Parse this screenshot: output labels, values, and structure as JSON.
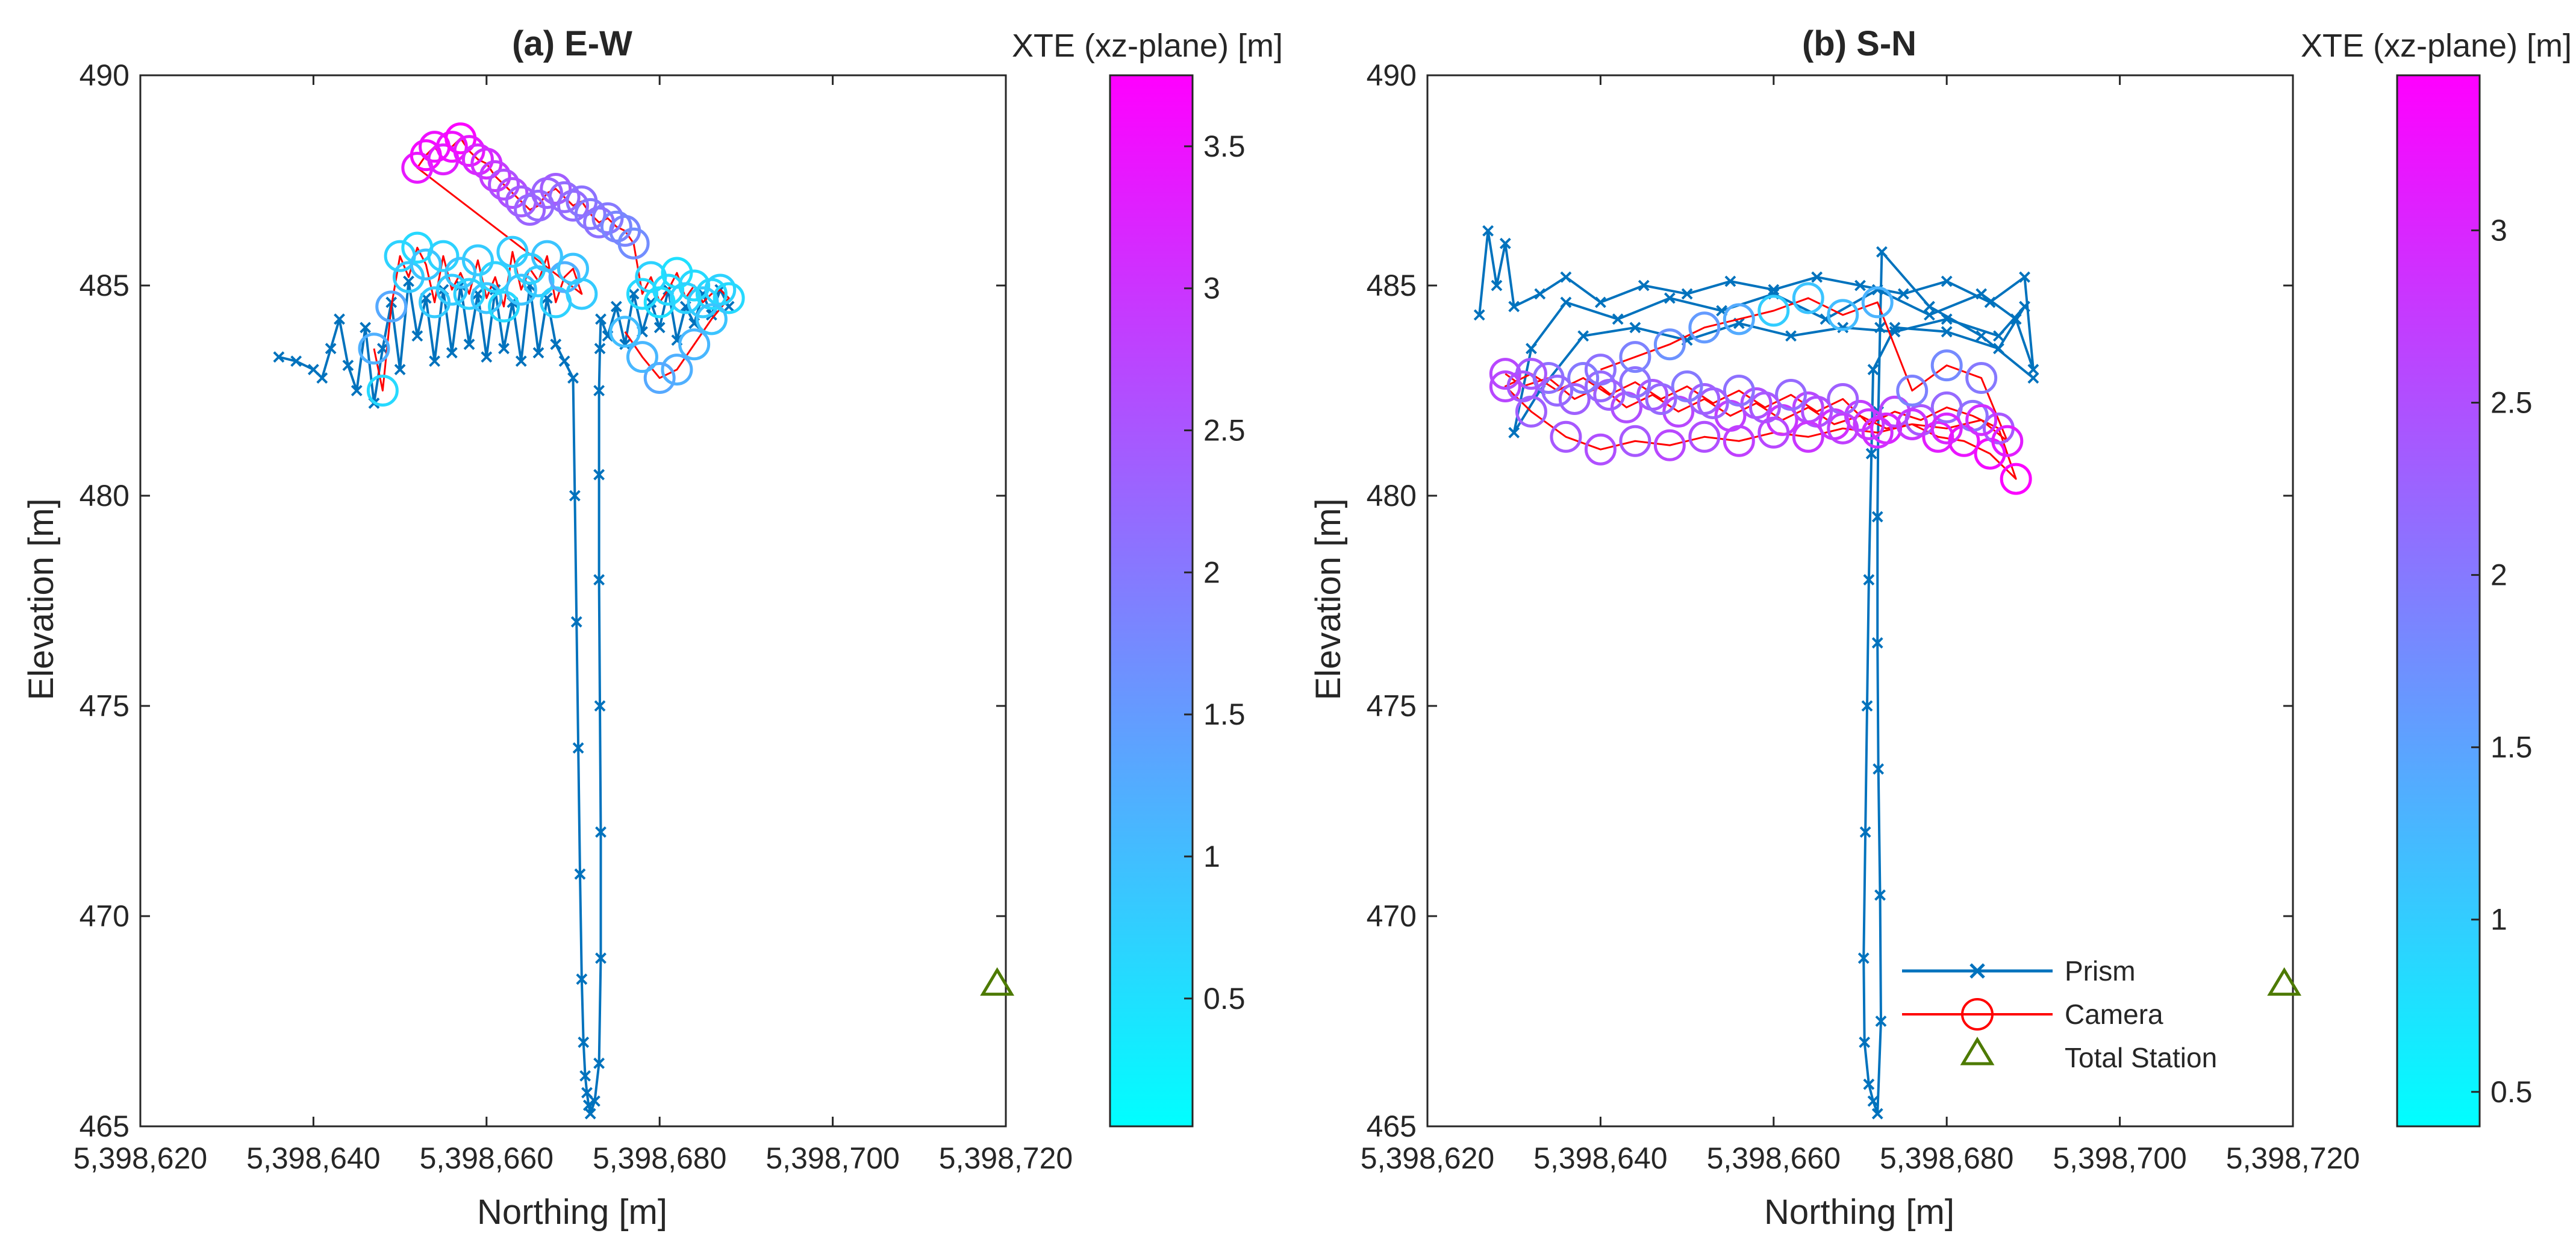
{
  "figure": {
    "colormap_low": "#00ffff",
    "colormap_high": "#ff00ff",
    "prism_color": "#0072bd",
    "camera_color": "#ff0000",
    "station_color": "#4d7a00"
  },
  "chart_data": [
    {
      "id": "a",
      "type": "scatter",
      "title": "(a) E-W",
      "xlabel": "Northing [m]",
      "ylabel": "Elevation [m]",
      "xlim": [
        5398620,
        5398720
      ],
      "ylim": [
        465,
        490
      ],
      "xticks": [
        5398620,
        5398640,
        5398660,
        5398680,
        5398700,
        5398720
      ],
      "xtick_labels": [
        "5,398,620",
        "5,398,640",
        "5,398,660",
        "5,398,680",
        "5,398,700",
        "5,398,720"
      ],
      "yticks": [
        465,
        470,
        475,
        480,
        485,
        490
      ],
      "ytick_labels": [
        "465",
        "470",
        "475",
        "480",
        "485",
        "490"
      ],
      "colorbar": {
        "label": "XTE (xz-plane) [m]",
        "range": [
          0.05,
          3.75
        ],
        "ticks": [
          0.5,
          1,
          1.5,
          2,
          2.5,
          3,
          3.5
        ],
        "tick_labels": [
          "0.5",
          "1",
          "1.5",
          "2",
          "2.5",
          "3",
          "3.5"
        ]
      },
      "series": [
        {
          "name": "Prism",
          "marker": "x",
          "x": [
            5398636,
            5398638,
            5398640,
            5398641,
            5398642,
            5398643,
            5398644,
            5398645,
            5398646,
            5398647,
            5398648,
            5398649,
            5398650,
            5398651,
            5398652,
            5398653,
            5398654,
            5398655,
            5398656,
            5398657,
            5398658,
            5398659,
            5398660,
            5398661,
            5398662,
            5398663,
            5398664,
            5398665,
            5398666,
            5398667,
            5398668,
            5398669,
            5398670,
            5398670.2,
            5398670.4,
            5398670.6,
            5398670.8,
            5398671,
            5398671.2,
            5398671.4,
            5398671.6,
            5398671.8,
            5398672,
            5398672.5,
            5398673,
            5398673.2,
            5398673.2,
            5398673.1,
            5398673.0,
            5398673.0,
            5398673.0,
            5398673.1,
            5398673.2,
            5398674,
            5398675,
            5398676,
            5398677,
            5398678,
            5398679,
            5398680,
            5398681,
            5398682,
            5398683,
            5398684,
            5398685,
            5398686,
            5398687,
            5398688
          ],
          "y": [
            483.3,
            483.2,
            483.0,
            482.8,
            483.5,
            484.2,
            483.1,
            482.5,
            484.0,
            482.2,
            483.5,
            484.6,
            483.0,
            485.1,
            483.8,
            484.7,
            483.2,
            484.9,
            483.4,
            485.0,
            483.6,
            484.8,
            483.3,
            484.9,
            483.5,
            484.6,
            483.2,
            485.0,
            483.4,
            484.7,
            483.6,
            483.2,
            482.8,
            480.0,
            477.0,
            474.0,
            471.0,
            468.5,
            467.0,
            466.2,
            465.8,
            465.5,
            465.3,
            465.6,
            466.5,
            469.0,
            472.0,
            475.0,
            478.0,
            480.5,
            482.5,
            483.5,
            484.2,
            483.8,
            484.5,
            483.6,
            484.8,
            483.9,
            484.6,
            484.0,
            484.9,
            483.7,
            484.5,
            484.1,
            484.8,
            484.3,
            484.9,
            484.5
          ],
          "color": "#0072bd"
        },
        {
          "name": "Camera",
          "marker": "o",
          "x": [
            5398647,
            5398648,
            5398649,
            5398650,
            5398651,
            5398652,
            5398653,
            5398654,
            5398655,
            5398656,
            5398657,
            5398658,
            5398659,
            5398660,
            5398661,
            5398662,
            5398663,
            5398664,
            5398665,
            5398666,
            5398667,
            5398668,
            5398669,
            5398670,
            5398671,
            5398652,
            5398653,
            5398654,
            5398655,
            5398656,
            5398657,
            5398658,
            5398659,
            5398660,
            5398661,
            5398662,
            5398663,
            5398664,
            5398665,
            5398666,
            5398667,
            5398668,
            5398669,
            5398670,
            5398671,
            5398672,
            5398673,
            5398674,
            5398675,
            5398676,
            5398677,
            5398678,
            5398679,
            5398680,
            5398681,
            5398682,
            5398683,
            5398684,
            5398685,
            5398686,
            5398687,
            5398688,
            5398686,
            5398684,
            5398682,
            5398680,
            5398678,
            5398676
          ],
          "y": [
            483.5,
            482.5,
            484.5,
            485.7,
            485.2,
            485.9,
            485.5,
            484.6,
            485.7,
            484.9,
            485.3,
            484.8,
            485.6,
            484.7,
            485.2,
            484.5,
            485.8,
            484.9,
            485.4,
            485.1,
            485.7,
            484.6,
            485.2,
            485.4,
            484.8,
            487.8,
            488.1,
            488.3,
            488.0,
            488.3,
            488.5,
            488.2,
            488.0,
            487.9,
            487.6,
            487.4,
            487.2,
            487.0,
            486.8,
            486.9,
            487.2,
            487.3,
            487.1,
            486.9,
            487.0,
            486.7,
            486.5,
            486.6,
            486.4,
            486.3,
            486.0,
            484.8,
            485.2,
            484.6,
            484.9,
            485.3,
            484.7,
            485.0,
            484.6,
            484.8,
            484.9,
            484.7,
            484.2,
            483.6,
            483.0,
            482.8,
            483.3,
            483.9
          ],
          "xte": [
            1.2,
            0.6,
            1.3,
            0.7,
            0.8,
            0.6,
            0.9,
            0.8,
            0.7,
            0.8,
            0.9,
            0.7,
            0.8,
            0.9,
            0.7,
            0.6,
            0.8,
            0.9,
            0.7,
            0.8,
            0.9,
            0.7,
            1.2,
            0.9,
            0.8,
            3.4,
            3.6,
            3.5,
            3.3,
            3.5,
            3.7,
            3.4,
            3.2,
            3.1,
            2.9,
            2.6,
            2.6,
            2.4,
            2.3,
            2.2,
            2.3,
            2.4,
            2.2,
            2.2,
            2.1,
            2.0,
            2.1,
            2.0,
            1.8,
            1.8,
            1.7,
            0.6,
            0.7,
            0.5,
            0.6,
            0.5,
            0.7,
            0.6,
            0.8,
            0.6,
            0.7,
            0.6,
            0.9,
            1.1,
            1.2,
            1.3,
            1.1,
            1.0
          ],
          "color": "#ff0000"
        },
        {
          "name": "Total Station",
          "marker": "triangle",
          "x": [
            5398719
          ],
          "y": [
            468.4
          ],
          "color": "#4d7a00"
        }
      ]
    },
    {
      "id": "b",
      "type": "scatter",
      "title": "(b) S-N",
      "xlabel": "Northing [m]",
      "ylabel": "Elevation [m]",
      "xlim": [
        5398620,
        5398720
      ],
      "ylim": [
        465,
        490
      ],
      "xticks": [
        5398620,
        5398640,
        5398660,
        5398680,
        5398700,
        5398720
      ],
      "xtick_labels": [
        "5,398,620",
        "5,398,640",
        "5,398,660",
        "5,398,680",
        "5,398,700",
        "5,398,720"
      ],
      "yticks": [
        465,
        470,
        475,
        480,
        485,
        490
      ],
      "ytick_labels": [
        "465",
        "470",
        "475",
        "480",
        "485",
        "490"
      ],
      "colorbar": {
        "label": "XTE (xz-plane) [m]",
        "range": [
          0.4,
          3.45
        ],
        "ticks": [
          0.5,
          1,
          1.5,
          2,
          2.5,
          3
        ],
        "tick_labels": [
          "0.5",
          "1",
          "1.5",
          "2",
          "2.5",
          "3"
        ]
      },
      "legend": {
        "position": "bottom-right",
        "entries": [
          "Prism",
          "Camera",
          "Total Station"
        ]
      },
      "series": [
        {
          "name": "Prism",
          "marker": "x",
          "x": [
            5398626,
            5398627,
            5398628,
            5398629,
            5398630,
            5398633,
            5398636,
            5398640,
            5398645,
            5398650,
            5398655,
            5398660,
            5398665,
            5398670,
            5398675,
            5398680,
            5398685,
            5398689,
            5398690,
            5398688,
            5398684,
            5398678,
            5398672,
            5398666,
            5398660,
            5398654,
            5398648,
            5398642,
            5398636,
            5398632,
            5398630,
            5398633,
            5398638,
            5398644,
            5398650,
            5398656,
            5398662,
            5398668,
            5398674,
            5398680,
            5398686,
            5398689,
            5398686,
            5398680,
            5398674,
            5398671.5,
            5398671.3,
            5398671.0,
            5398670.8,
            5398670.6,
            5398670.4,
            5398670.5,
            5398671.0,
            5398671.5,
            5398672.0,
            5398672.4,
            5398672.3,
            5398672.1,
            5398672.0,
            5398672.0,
            5398672.1,
            5398672.3,
            5398672.5,
            5398678,
            5398684,
            5398690
          ],
          "y": [
            484.3,
            486.3,
            485.0,
            486.0,
            484.5,
            484.8,
            485.2,
            484.6,
            485.0,
            484.8,
            485.1,
            484.9,
            485.2,
            485.0,
            484.8,
            485.1,
            484.6,
            485.2,
            483.0,
            484.2,
            484.8,
            484.3,
            484.9,
            484.2,
            484.8,
            484.4,
            484.7,
            484.2,
            484.6,
            483.5,
            481.5,
            482.5,
            483.8,
            484.0,
            483.7,
            484.1,
            483.8,
            484.0,
            483.9,
            484.2,
            483.8,
            484.5,
            483.5,
            483.9,
            484.0,
            483.0,
            481.0,
            478.0,
            475.0,
            472.0,
            469.0,
            467.0,
            466.0,
            465.6,
            465.3,
            467.5,
            470.5,
            473.5,
            476.5,
            479.5,
            482.0,
            484.0,
            485.8,
            484.5,
            483.8,
            482.8
          ],
          "color": "#0072bd"
        },
        {
          "name": "Camera",
          "marker": "o",
          "x": [
            5398629,
            5398631,
            5398634,
            5398637,
            5398640,
            5398643,
            5398646,
            5398649,
            5398652,
            5398655,
            5398658,
            5398661,
            5398664,
            5398667,
            5398670,
            5398673,
            5398676,
            5398679,
            5398682,
            5398685,
            5398688,
            5398686,
            5398683,
            5398680,
            5398677,
            5398674,
            5398671,
            5398668,
            5398665,
            5398662,
            5398659,
            5398656,
            5398653,
            5398650,
            5398647,
            5398644,
            5398641,
            5398638,
            5398635,
            5398632,
            5398629,
            5398632,
            5398636,
            5398640,
            5398644,
            5398648,
            5398652,
            5398656,
            5398660,
            5398664,
            5398668,
            5398672,
            5398676,
            5398680,
            5398684,
            5398687,
            5398684,
            5398680,
            5398676,
            5398672,
            5398668,
            5398664,
            5398660,
            5398656,
            5398652,
            5398648,
            5398644,
            5398640
          ],
          "y": [
            482.9,
            482.6,
            482.8,
            482.3,
            482.6,
            482.1,
            482.4,
            482.0,
            482.3,
            481.9,
            482.2,
            481.8,
            482.1,
            481.7,
            481.9,
            481.6,
            481.7,
            481.4,
            481.3,
            481.0,
            480.4,
            481.6,
            481.9,
            482.1,
            481.8,
            482.0,
            481.7,
            482.3,
            482.0,
            482.4,
            482.1,
            482.5,
            482.2,
            482.6,
            482.3,
            482.7,
            482.4,
            482.8,
            482.5,
            482.9,
            482.6,
            482.0,
            481.4,
            481.1,
            481.3,
            481.2,
            481.4,
            481.3,
            481.5,
            481.4,
            481.6,
            481.5,
            481.7,
            481.6,
            481.8,
            481.3,
            482.8,
            483.1,
            482.5,
            484.6,
            484.3,
            484.7,
            484.4,
            484.2,
            484.0,
            483.6,
            483.3,
            483.0
          ],
          "xte": [
            2.6,
            2.4,
            2.1,
            2.3,
            2.2,
            2.5,
            2.4,
            2.6,
            2.3,
            2.7,
            2.5,
            2.8,
            2.6,
            2.9,
            2.7,
            3.0,
            2.8,
            3.1,
            3.2,
            3.3,
            3.4,
            2.4,
            2.1,
            2.2,
            2.4,
            2.6,
            2.8,
            2.3,
            2.5,
            2.2,
            2.4,
            2.1,
            2.3,
            2.0,
            2.2,
            2.1,
            2.3,
            2.0,
            2.2,
            2.4,
            2.6,
            2.3,
            2.4,
            2.5,
            2.4,
            2.6,
            2.5,
            2.7,
            2.6,
            2.8,
            2.7,
            2.9,
            2.8,
            3.0,
            2.9,
            3.1,
            2.0,
            1.8,
            1.9,
            1.3,
            1.2,
            1.1,
            1.0,
            1.4,
            1.6,
            1.7,
            1.9,
            2.1
          ],
          "color": "#ff0000"
        },
        {
          "name": "Total Station",
          "marker": "triangle",
          "x": [
            5398719
          ],
          "y": [
            468.4
          ],
          "color": "#4d7a00"
        }
      ]
    }
  ]
}
